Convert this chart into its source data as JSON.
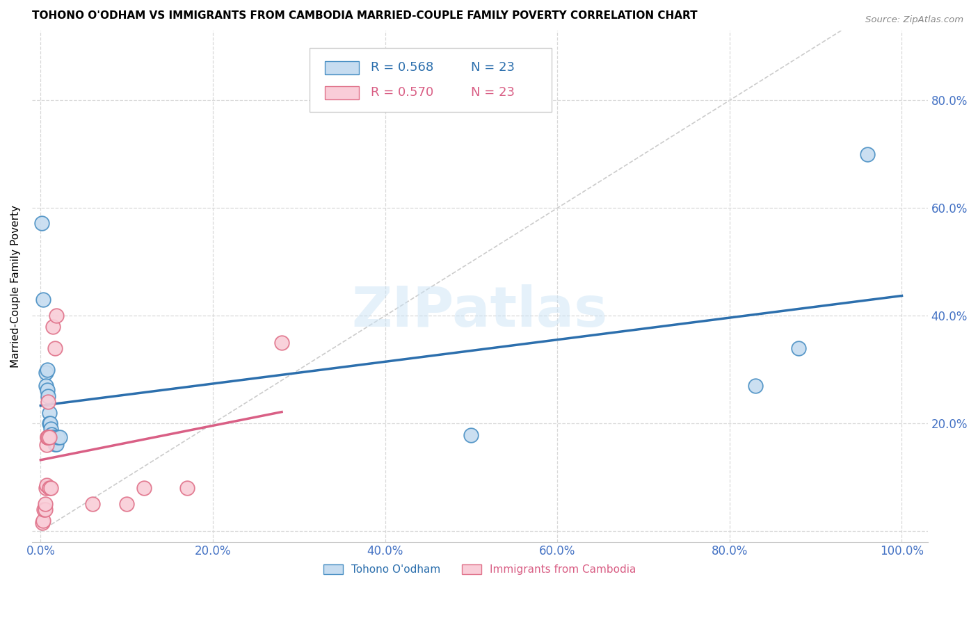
{
  "title": "TOHONO O'ODHAM VS IMMIGRANTS FROM CAMBODIA MARRIED-COUPLE FAMILY POVERTY CORRELATION CHART",
  "source": "Source: ZipAtlas.com",
  "ylabel": "Married-Couple Family Poverty",
  "watermark_text": "ZIPatlas",
  "blue_R": "R = 0.568",
  "blue_N": "N = 23",
  "pink_R": "R = 0.570",
  "pink_N": "N = 23",
  "legend_label_blue": "Tohono O'odham",
  "legend_label_pink": "Immigrants from Cambodia",
  "blue_face": "#c6dcf0",
  "pink_face": "#f9cdd8",
  "blue_edge": "#4a90c4",
  "pink_edge": "#e0728a",
  "blue_line": "#2c6fad",
  "pink_line": "#d95f85",
  "diagonal_color": "#cccccc",
  "grid_color": "#d8d8d8",
  "axis_tick_color": "#4472c4",
  "blue_points": [
    [
      0.001,
      0.572
    ],
    [
      0.003,
      0.43
    ],
    [
      0.006,
      0.295
    ],
    [
      0.006,
      0.27
    ],
    [
      0.008,
      0.3
    ],
    [
      0.008,
      0.262
    ],
    [
      0.009,
      0.25
    ],
    [
      0.01,
      0.22
    ],
    [
      0.01,
      0.2
    ],
    [
      0.011,
      0.2
    ],
    [
      0.012,
      0.19
    ],
    [
      0.013,
      0.18
    ],
    [
      0.014,
      0.175
    ],
    [
      0.015,
      0.175
    ],
    [
      0.016,
      0.17
    ],
    [
      0.017,
      0.162
    ],
    [
      0.018,
      0.162
    ],
    [
      0.02,
      0.175
    ],
    [
      0.022,
      0.175
    ],
    [
      0.5,
      0.178
    ],
    [
      0.83,
      0.27
    ],
    [
      0.88,
      0.34
    ],
    [
      0.96,
      0.7
    ]
  ],
  "pink_points": [
    [
      0.002,
      0.015
    ],
    [
      0.003,
      0.02
    ],
    [
      0.004,
      0.04
    ],
    [
      0.005,
      0.04
    ],
    [
      0.005,
      0.05
    ],
    [
      0.006,
      0.08
    ],
    [
      0.007,
      0.085
    ],
    [
      0.007,
      0.16
    ],
    [
      0.008,
      0.175
    ],
    [
      0.008,
      0.175
    ],
    [
      0.009,
      0.24
    ],
    [
      0.009,
      0.175
    ],
    [
      0.01,
      0.175
    ],
    [
      0.01,
      0.08
    ],
    [
      0.012,
      0.08
    ],
    [
      0.014,
      0.38
    ],
    [
      0.017,
      0.34
    ],
    [
      0.018,
      0.4
    ],
    [
      0.06,
      0.05
    ],
    [
      0.1,
      0.05
    ],
    [
      0.12,
      0.08
    ],
    [
      0.17,
      0.08
    ],
    [
      0.28,
      0.35
    ]
  ],
  "xlim": [
    -0.01,
    1.03
  ],
  "ylim": [
    -0.02,
    0.93
  ],
  "xtick_vals": [
    0.0,
    0.2,
    0.4,
    0.6,
    0.8,
    1.0
  ],
  "ytick_vals": [
    0.0,
    0.2,
    0.4,
    0.6,
    0.8
  ],
  "xtick_labels": [
    "0.0%",
    "20.0%",
    "40.0%",
    "60.0%",
    "80.0%",
    "100.0%"
  ],
  "ytick_labels_right": [
    "",
    "20.0%",
    "40.0%",
    "60.0%",
    "80.0%"
  ]
}
